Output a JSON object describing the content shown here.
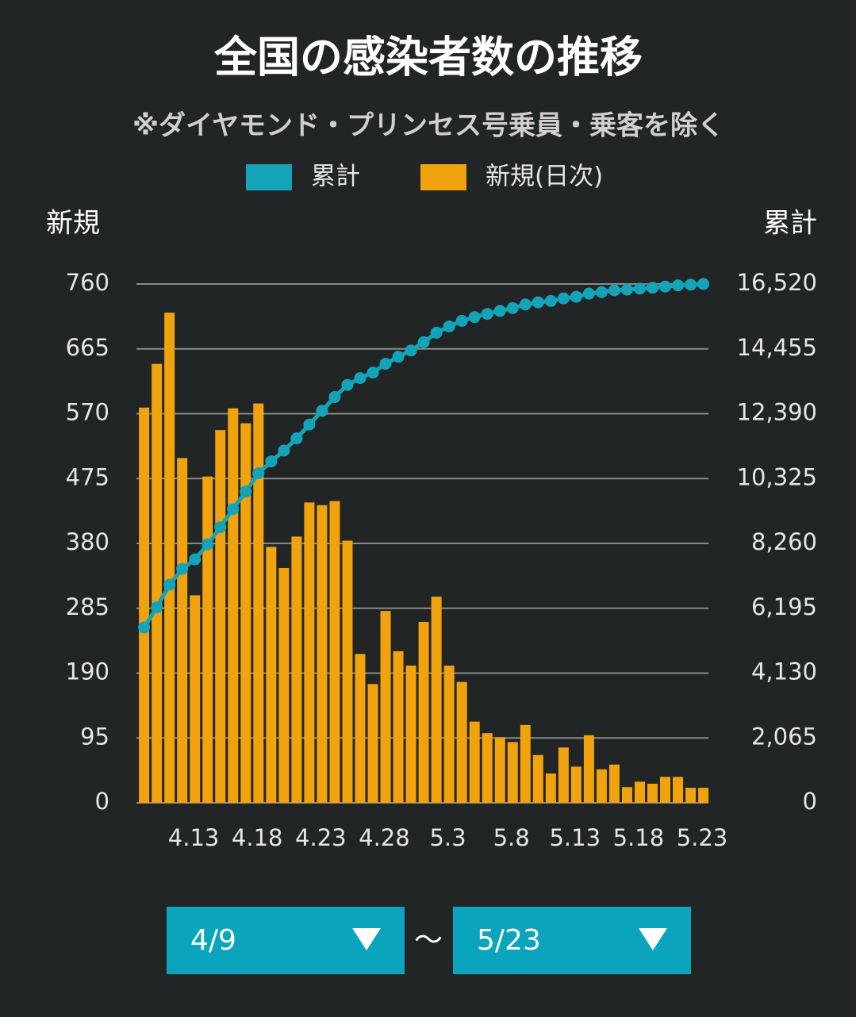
{
  "chart_data": {
    "type": "bar",
    "title": "全国の感染者数の推移",
    "subtitle": "※ダイヤモンド・プリンセス号乗員・乗客を除く",
    "y_axis_label": "新規",
    "y2_axis_label": "累計",
    "categories": [
      null,
      null,
      null,
      null,
      "4.13",
      null,
      null,
      null,
      null,
      "4.18",
      null,
      null,
      null,
      null,
      "4.23",
      null,
      null,
      null,
      null,
      "4.28",
      null,
      null,
      null,
      null,
      "5.3",
      null,
      null,
      null,
      null,
      "5.8",
      null,
      null,
      null,
      null,
      "5.13",
      null,
      null,
      null,
      null,
      "5.18",
      null,
      null,
      null,
      null,
      "5.23"
    ],
    "series": [
      {
        "name": "累計",
        "type": "line",
        "axis": "y2",
        "color": "#14a4b9",
        "values": [
          5582,
          6225,
          6943,
          7448,
          7752,
          8230,
          8776,
          9354,
          9910,
          10495,
          10870,
          11214,
          11604,
          12044,
          12480,
          12922,
          13306,
          13524,
          13698,
          13979,
          14201,
          14402,
          14667,
          14969,
          15170,
          15347,
          15466,
          15568,
          15664,
          15753,
          15867,
          15937,
          15980,
          16061,
          16114,
          16213,
          16262,
          16318,
          16341,
          16372,
          16400,
          16438,
          16476,
          16498,
          16520
        ]
      },
      {
        "name": "新規(日次)",
        "type": "bar",
        "axis": "y",
        "color": "#f0a30c",
        "values": [
          579,
          643,
          718,
          505,
          304,
          478,
          546,
          578,
          556,
          585,
          375,
          344,
          390,
          440,
          436,
          442,
          384,
          218,
          174,
          281,
          222,
          201,
          265,
          302,
          201,
          177,
          119,
          102,
          96,
          89,
          114,
          70,
          43,
          81,
          53,
          99,
          49,
          56,
          23,
          31,
          28,
          38,
          38,
          22,
          22
        ]
      }
    ],
    "ylim": [
      0,
      760
    ],
    "yticks": [
      0,
      95,
      190,
      285,
      380,
      475,
      570,
      665,
      760
    ],
    "y2lim": [
      0,
      16520
    ],
    "y2ticks": [
      0,
      {
        "value": 2065,
        "label": "2,065"
      },
      {
        "value": 4130,
        "label": "4,130"
      },
      {
        "value": 6195,
        "label": "6,195"
      },
      {
        "value": 8260,
        "label": "8,260"
      },
      {
        "value": 10325,
        "label": "10,325"
      },
      {
        "value": 12390,
        "label": "12,390"
      },
      {
        "value": 14455,
        "label": "14,455"
      },
      {
        "value": 16520,
        "label": "16,520"
      }
    ],
    "grid": true
  },
  "range_selector": {
    "from": "4/9",
    "separator": "〜",
    "to": "5/23"
  }
}
